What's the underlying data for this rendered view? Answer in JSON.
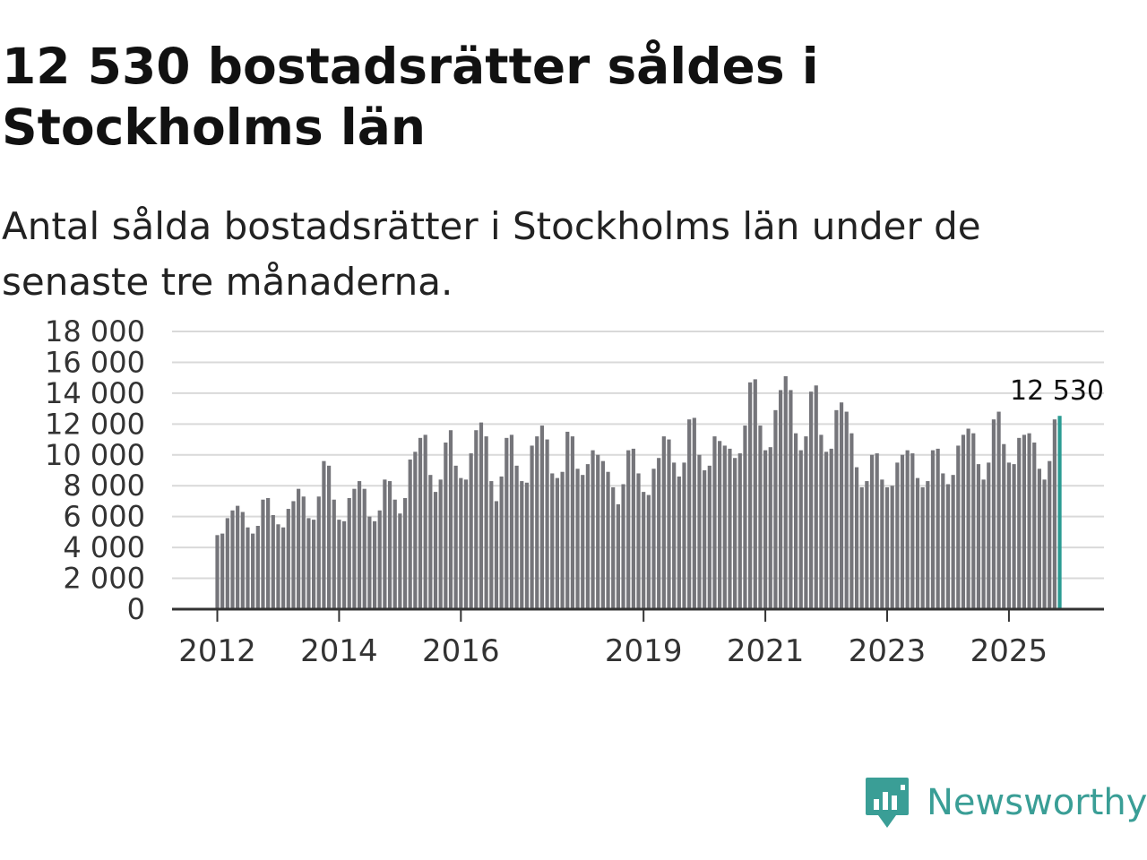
{
  "header": {
    "title": "12 530 bostadsrätter såldes i Stockholms län",
    "subtitle": "Antal sålda bostadsrätter i Stockholms län under de senaste tre månaderna."
  },
  "brand": {
    "name": "Newsworthy",
    "color": "#3a9e96",
    "icon": "newsworthy-logo-icon"
  },
  "chart_data": {
    "type": "bar",
    "title": "",
    "xlabel": "",
    "ylabel": "",
    "ylim": [
      0,
      18000
    ],
    "yticks": [
      0,
      2000,
      4000,
      6000,
      8000,
      10000,
      12000,
      14000,
      16000,
      18000
    ],
    "ytick_labels": [
      "0",
      "2 000",
      "4 000",
      "6 000",
      "8 000",
      "10 000",
      "12 000",
      "14 000",
      "16 000",
      "18 000"
    ],
    "xtick_labels": [
      "2012",
      "2014",
      "2016",
      "2019",
      "2021",
      "2023",
      "2025"
    ],
    "xtick_month_index": [
      0,
      24,
      48,
      84,
      108,
      132,
      156
    ],
    "start": "2012-01",
    "grid": true,
    "bar_color": "#75757a",
    "highlight_color": "#2b9b93",
    "highlight_label": "12 530",
    "values": [
      4800,
      4900,
      5900,
      6400,
      6700,
      6300,
      5300,
      4900,
      5400,
      7100,
      7200,
      6100,
      5500,
      5300,
      6500,
      7000,
      7800,
      7300,
      5900,
      5800,
      7300,
      9600,
      9300,
      7100,
      5800,
      5700,
      7200,
      7800,
      8300,
      7800,
      6000,
      5700,
      6400,
      8400,
      8300,
      7100,
      6200,
      7200,
      9700,
      10200,
      11100,
      11300,
      8700,
      7600,
      8400,
      10800,
      11600,
      9300,
      8500,
      8400,
      10100,
      11600,
      12100,
      11200,
      8300,
      7000,
      8600,
      11100,
      11300,
      9300,
      8300,
      8200,
      10600,
      11200,
      11900,
      11000,
      8800,
      8500,
      8900,
      11500,
      11200,
      9100,
      8700,
      9400,
      10300,
      10000,
      9600,
      8900,
      7900,
      6800,
      8100,
      10300,
      10400,
      8800,
      7600,
      7400,
      9100,
      9800,
      11200,
      11000,
      9500,
      8600,
      9500,
      12300,
      12400,
      10000,
      9000,
      9300,
      11200,
      10900,
      10600,
      10400,
      9800,
      10100,
      11900,
      14700,
      14900,
      11900,
      10300,
      10500,
      12900,
      14200,
      15100,
      14200,
      11400,
      10300,
      11200,
      14100,
      14500,
      11300,
      10200,
      10400,
      12900,
      13400,
      12800,
      11400,
      9200,
      7900,
      8300,
      10000,
      10100,
      8400,
      7900,
      8000,
      9500,
      10000,
      10300,
      10100,
      8500,
      7900,
      8300,
      10300,
      10400,
      8800,
      8100,
      8700,
      10600,
      11300,
      11700,
      11400,
      9400,
      8400,
      9500,
      12300,
      12800,
      10700,
      9500,
      9400,
      11100,
      11300,
      11400,
      10800,
      9100,
      8400,
      9600,
      12300,
      12530
    ]
  }
}
